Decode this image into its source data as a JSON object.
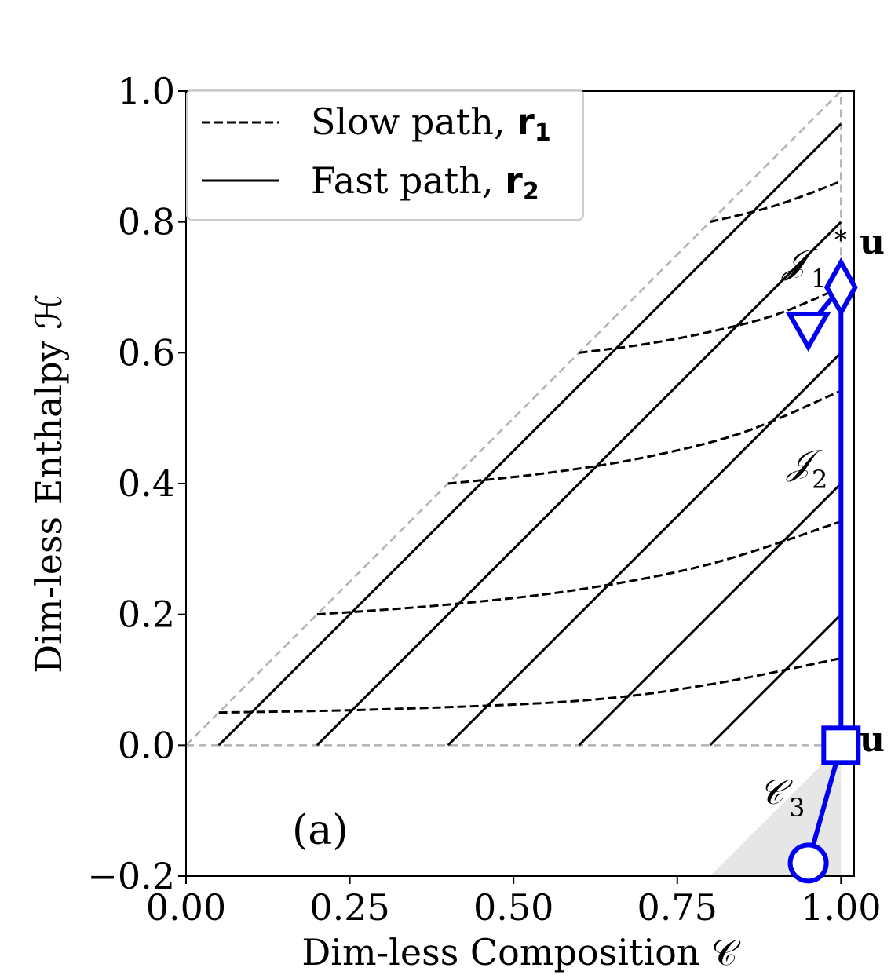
{
  "chart_data": {
    "type": "line",
    "panel_label": "(a)",
    "xlabel": "Dim-less Composition 𝒞",
    "ylabel": "Dim-less Enthalpy ℋ",
    "xlim": [
      0.0,
      1.02
    ],
    "ylim": [
      -0.2,
      1.0
    ],
    "x_ticks": [
      "0.00",
      "0.25",
      "0.50",
      "0.75",
      "1.00"
    ],
    "y_ticks": [
      "−0.2",
      "0.0",
      "0.2",
      "0.4",
      "0.6",
      "0.8",
      "1.0"
    ],
    "legend": {
      "placement": "top-left",
      "entries": [
        {
          "style": "dashed",
          "label": "Slow path, ",
          "bold": "r",
          "sub": "1"
        },
        {
          "style": "solid",
          "label": "Fast path, ",
          "bold": "r",
          "sub": "2"
        }
      ]
    },
    "series": [
      {
        "style": "dashed",
        "x": [
          0.05,
          0.3,
          0.6,
          0.8,
          1.0
        ],
        "y": [
          0.05,
          0.055,
          0.068,
          0.093,
          0.133
        ]
      },
      {
        "style": "dashed",
        "x": [
          0.2,
          0.4,
          0.6,
          0.8,
          1.0
        ],
        "y": [
          0.2,
          0.215,
          0.238,
          0.277,
          0.342
        ]
      },
      {
        "style": "dashed",
        "x": [
          0.4,
          0.55,
          0.7,
          0.85,
          1.0
        ],
        "y": [
          0.4,
          0.416,
          0.44,
          0.478,
          0.542
        ]
      },
      {
        "style": "dashed",
        "x": [
          0.6,
          0.7,
          0.8,
          0.9,
          1.0
        ],
        "y": [
          0.6,
          0.613,
          0.632,
          0.658,
          0.7
        ]
      },
      {
        "style": "dashed",
        "x": [
          0.8,
          0.9,
          1.0
        ],
        "y": [
          0.8,
          0.825,
          0.862
        ]
      },
      {
        "style": "solid",
        "x": [
          0.05,
          1.0
        ],
        "y": [
          0.0,
          0.95
        ]
      },
      {
        "style": "solid",
        "x": [
          0.2,
          1.0
        ],
        "y": [
          0.0,
          0.8
        ]
      },
      {
        "style": "solid",
        "x": [
          0.4,
          1.0
        ],
        "y": [
          0.0,
          0.6
        ]
      },
      {
        "style": "solid",
        "x": [
          0.6,
          1.0
        ],
        "y": [
          0.0,
          0.4
        ]
      },
      {
        "style": "solid",
        "x": [
          0.8,
          1.0
        ],
        "y": [
          0.0,
          0.2
        ]
      }
    ],
    "reference_lines": [
      {
        "style": "gray-dashed",
        "x": [
          0.0,
          1.0
        ],
        "y": [
          0.0,
          1.0
        ]
      },
      {
        "style": "gray-dashed",
        "x": [
          0.0,
          1.0
        ],
        "y": [
          0.0,
          0.0
        ]
      },
      {
        "style": "gray-dashed",
        "x": [
          1.0,
          1.0
        ],
        "y": [
          0.0,
          1.0
        ]
      }
    ],
    "shaded_region": {
      "x": [
        0.8,
        1.0,
        1.0
      ],
      "y": [
        -0.2,
        -0.2,
        0.0
      ],
      "color": "#e6e6e6"
    },
    "blue_path": {
      "color": "#0000ee",
      "points": [
        {
          "x": 0.95,
          "y": -0.18,
          "marker": "circle"
        },
        {
          "x": 1.0,
          "y": 0.0,
          "marker": "square"
        },
        {
          "x": 1.0,
          "y": 0.7,
          "marker": "diamond"
        },
        {
          "x": 0.95,
          "y": 0.64,
          "marker": "triangle-down"
        }
      ]
    },
    "annotations": [
      {
        "text": "𝒥",
        "sub": "1",
        "sup": "∗",
        "x": 0.935,
        "y": 0.71
      },
      {
        "text": "𝒥",
        "sub": "2",
        "x": 0.945,
        "y": 0.4
      },
      {
        "text": "𝒞",
        "sub": "3",
        "x": 0.88,
        "y": -0.09
      },
      {
        "text": "u",
        "x": 1.025,
        "y": 0.75
      },
      {
        "text": "u",
        "x": 1.025,
        "y": 0.0
      }
    ]
  }
}
